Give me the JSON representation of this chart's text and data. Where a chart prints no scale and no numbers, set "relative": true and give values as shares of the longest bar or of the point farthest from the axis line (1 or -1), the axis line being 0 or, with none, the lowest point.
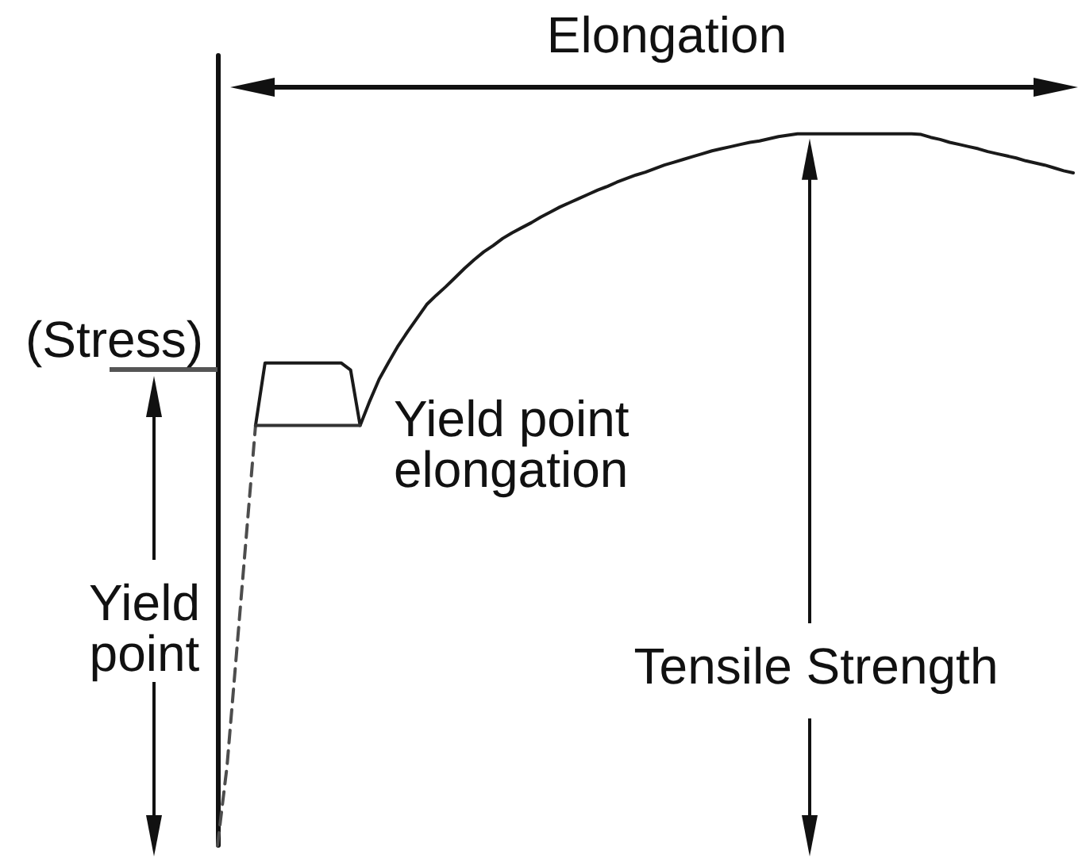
{
  "chart_data": {
    "type": "line",
    "relative": true,
    "xlabel": "Elongation",
    "ylabel": "(Stress)",
    "marker": "none",
    "categories": [
      null,
      null,
      null,
      null,
      null,
      null,
      null,
      null,
      null,
      null,
      null,
      null,
      null,
      null,
      null,
      null,
      null,
      null,
      null,
      null,
      null,
      null,
      null,
      null,
      null,
      null,
      null,
      null,
      null,
      null,
      null,
      null,
      null,
      null,
      null,
      null,
      null,
      null,
      null,
      null,
      null,
      null,
      null,
      null,
      null,
      null,
      null,
      null,
      null,
      null,
      null,
      null,
      null,
      null,
      null,
      null,
      null,
      null,
      null,
      null,
      null,
      null,
      null,
      null,
      null,
      null,
      null,
      null,
      null,
      null,
      null,
      null,
      null,
      null,
      null,
      null,
      null,
      null,
      null,
      null,
      null,
      null,
      null,
      null,
      null,
      null,
      null,
      null,
      null,
      null,
      null
    ],
    "series": [
      {
        "color": "#4d4d4d",
        "line_style": "dashed",
        "values": [
          0,
          0.111,
          0.27,
          0.43,
          0.59,
          null,
          null,
          null,
          null,
          null,
          null,
          null,
          null,
          null,
          null,
          null,
          null,
          null,
          null,
          null,
          null,
          null,
          null,
          null,
          null,
          null,
          null,
          null,
          null,
          null,
          null,
          null,
          null,
          null,
          null,
          null,
          null,
          null,
          null,
          null,
          null,
          null,
          null,
          null,
          null,
          null,
          null,
          null,
          null,
          null,
          null,
          null,
          null,
          null,
          null,
          null,
          null,
          null,
          null,
          null,
          null,
          null,
          null,
          null,
          null,
          null,
          null,
          null,
          null,
          null,
          null,
          null,
          null,
          null,
          null,
          null,
          null,
          null,
          null,
          null,
          null,
          null,
          null,
          null,
          null,
          null,
          null,
          null,
          null,
          null,
          null
        ]
      },
      {
        "color": "#1a1a1a",
        "line_style": "solid",
        "values": [
          null,
          null,
          null,
          null,
          0.59,
          0.678,
          0.678,
          0.678,
          0.678,
          0.678,
          0.678,
          0.678,
          0.678,
          0.678,
          0.668,
          0.59,
          0.624,
          0.655,
          0.679,
          0.702,
          0.722,
          0.741,
          0.76,
          0.773,
          0.785,
          0.798,
          0.811,
          0.823,
          0.834,
          0.843,
          0.853,
          0.861,
          0.868,
          0.875,
          0.883,
          0.89,
          0.897,
          0.903,
          0.909,
          0.915,
          0.921,
          0.926,
          0.932,
          0.937,
          0.942,
          0.946,
          0.951,
          0.956,
          0.96,
          0.964,
          0.968,
          0.972,
          0.976,
          0.979,
          0.982,
          0.985,
          0.988,
          0.99,
          0.993,
          0.996,
          0.998,
          1,
          1,
          1,
          1,
          1,
          1,
          1,
          1,
          1,
          1,
          1,
          1,
          1,
          0.999,
          0.995,
          0.992,
          0.988,
          0.985,
          0.982,
          0.979,
          0.975,
          0.972,
          0.969,
          0.966,
          0.962,
          0.959,
          0.956,
          0.952,
          0.948,
          0.945
        ]
      },
      {
        "color": "#333333",
        "line_style": "solid",
        "values": [
          null,
          null,
          null,
          null,
          0.59,
          0.59,
          0.59,
          0.59,
          0.59,
          0.59,
          0.59,
          0.59,
          0.59,
          0.59,
          0.59,
          0.59,
          null,
          null,
          null,
          null,
          null,
          null,
          null,
          null,
          null,
          null,
          null,
          null,
          null,
          null,
          null,
          null,
          null,
          null,
          null,
          null,
          null,
          null,
          null,
          null,
          null,
          null,
          null,
          null,
          null,
          null,
          null,
          null,
          null,
          null,
          null,
          null,
          null,
          null,
          null,
          null,
          null,
          null,
          null,
          null,
          null,
          null,
          null,
          null,
          null,
          null,
          null,
          null,
          null,
          null,
          null,
          null,
          null,
          null,
          null,
          null,
          null,
          null,
          null,
          null,
          null,
          null,
          null,
          null,
          null,
          null,
          null,
          null,
          null,
          null,
          null
        ]
      }
    ],
    "annotations": [
      "Yield point",
      "Yield point elongation",
      "Tensile Strength"
    ]
  }
}
